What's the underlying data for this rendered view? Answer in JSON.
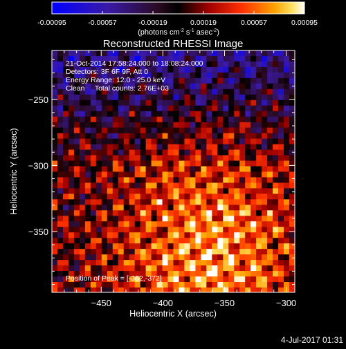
{
  "colorbar": {
    "ticks": [
      "-0.00095",
      "-0.00057",
      "-0.00019",
      "0.00019",
      "0.00057",
      "0.00095"
    ],
    "units_main": "(photons cm",
    "units_sup1": "-2",
    "units_mid1": " s",
    "units_sup2": "-1",
    "units_mid2": " asec",
    "units_sup3": "-2",
    "units_end": ")"
  },
  "chart_data": {
    "type": "heatmap",
    "title": "Reconstructed RHESSI Image",
    "xlabel": "Heliocentric X (arcsec)",
    "ylabel": "Heliocentric Y (arcsec)",
    "xlim": [
      -490,
      -293
    ],
    "ylim": [
      -396,
      -213
    ],
    "x_ticks": [
      -450,
      -400,
      -350,
      -300
    ],
    "x_tick_labels": [
      "−450",
      "−400",
      "−350",
      "−300"
    ],
    "y_ticks": [
      -250,
      -300,
      -350
    ],
    "y_tick_labels": [
      "−250",
      "−300",
      "−350"
    ],
    "color_range": [
      -0.00095,
      0.00095
    ],
    "peak_position": [
      -362,
      -372
    ],
    "annotations": [
      "21-Oct-2014 17:58:24.000 to 18:08:24.000",
      "Detectors: 3F 6F 9F, Att 0",
      "Energy Range: 12.0 - 25.0 keV",
      "Clean     Total counts: 2.76E+03"
    ],
    "peak_label": "Position of Peak = [-362,-372]"
  },
  "footer_date": "4-Jul-2017 01:31"
}
